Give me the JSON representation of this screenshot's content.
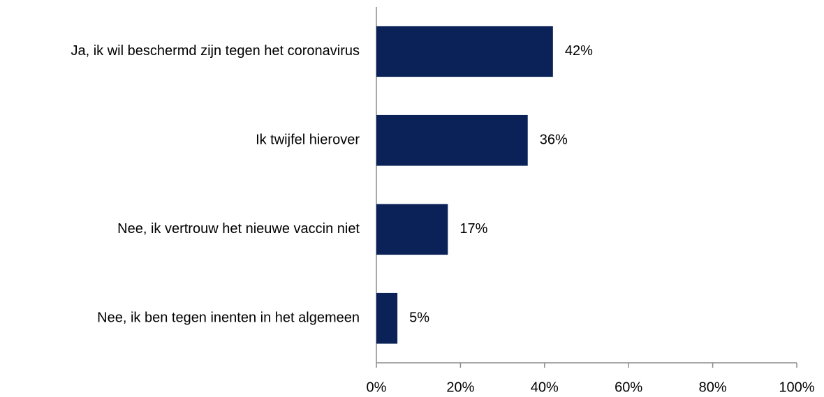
{
  "chart_data": {
    "type": "bar",
    "orientation": "horizontal",
    "categories": [
      "Ja, ik wil beschermd zijn tegen het coronavirus",
      "Ik twijfel hierover",
      "Nee, ik vertrouw het nieuwe vaccin niet",
      "Nee, ik ben tegen inenten in het algemeen"
    ],
    "values": [
      42,
      36,
      17,
      5
    ],
    "value_labels": [
      "42%",
      "36%",
      "17%",
      "5%"
    ],
    "color": "#0b2258",
    "xlim": [
      0,
      100
    ],
    "xticks": [
      {
        "value": 0,
        "label": "0%"
      },
      {
        "value": 20,
        "label": "20%"
      },
      {
        "value": 40,
        "label": "40%"
      },
      {
        "value": 60,
        "label": "60%"
      },
      {
        "value": 80,
        "label": "80%"
      },
      {
        "value": 100,
        "label": "100%"
      }
    ],
    "grid": false
  }
}
